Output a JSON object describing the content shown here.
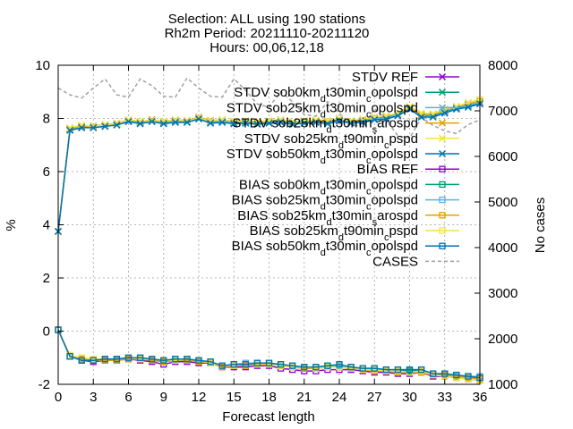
{
  "chart_data": {
    "type": "line",
    "title_lines": [
      "Selection: ALL using    190 stations",
      "Rh2m   Period: 20211110-20211120",
      "Hours: 00,06,12,18"
    ],
    "xlabel": "Forecast length",
    "ylabel": "%",
    "y2label": "No cases",
    "xlim": [
      0,
      36
    ],
    "ylim": [
      -2,
      10
    ],
    "y2lim": [
      1000,
      8000
    ],
    "xticks": [
      "0",
      "3",
      "6",
      "9",
      "12",
      "15",
      "18",
      "21",
      "24",
      "27",
      "30",
      "33",
      "36"
    ],
    "yticks": [
      "-2",
      "0",
      "2",
      "4",
      "6",
      "8",
      "10"
    ],
    "y2ticks": [
      "1000",
      "2000",
      "3000",
      "4000",
      "5000",
      "6000",
      "7000",
      "8000"
    ],
    "grid": true,
    "legend_position": "top-right",
    "x": [
      0,
      1,
      2,
      3,
      4,
      5,
      6,
      7,
      8,
      9,
      10,
      11,
      12,
      13,
      14,
      15,
      16,
      17,
      18,
      19,
      20,
      21,
      22,
      23,
      24,
      25,
      26,
      27,
      28,
      29,
      30,
      31,
      32,
      33,
      34,
      35,
      36
    ],
    "series": [
      {
        "name": "STDV REF",
        "color": "#9400d3",
        "marker": "x",
        "axis": "y",
        "values": [
          3.75,
          7.6,
          7.68,
          7.68,
          7.72,
          7.78,
          7.92,
          7.85,
          7.95,
          7.85,
          7.92,
          7.88,
          8.02,
          7.88,
          7.9,
          7.85,
          7.88,
          7.8,
          7.88,
          7.95,
          7.8,
          7.88,
          7.9,
          7.85,
          7.95,
          7.85,
          7.9,
          8.0,
          8.05,
          8.15,
          8.4,
          8.12,
          8.1,
          8.3,
          8.4,
          8.5,
          8.55
        ]
      },
      {
        "name": "STDV sob0km_d t30min_c opolspd",
        "color": "#009e73",
        "marker": "x",
        "axis": "y",
        "values": [
          3.75,
          7.58,
          7.65,
          7.68,
          7.72,
          7.78,
          7.9,
          7.82,
          7.9,
          7.82,
          7.88,
          7.88,
          8.0,
          7.85,
          7.88,
          7.82,
          7.85,
          7.8,
          7.85,
          7.88,
          7.8,
          7.85,
          7.88,
          7.82,
          7.92,
          7.85,
          7.88,
          7.98,
          8.0,
          8.15,
          8.38,
          8.1,
          8.1,
          8.25,
          8.4,
          8.48,
          8.6
        ]
      },
      {
        "name": "STDV sob25km_d t30min_c opolspd",
        "color": "#56b4e9",
        "marker": "x",
        "axis": "y",
        "values": [
          3.75,
          7.6,
          7.66,
          7.68,
          7.73,
          7.8,
          7.92,
          7.85,
          7.92,
          7.85,
          7.9,
          7.9,
          8.02,
          7.88,
          7.9,
          7.85,
          7.88,
          7.82,
          7.88,
          7.9,
          7.82,
          7.88,
          7.9,
          7.85,
          7.95,
          7.88,
          7.9,
          8.0,
          8.02,
          8.15,
          8.4,
          8.12,
          8.12,
          8.28,
          8.42,
          8.5,
          8.6
        ]
      },
      {
        "name": "STDV sob25km_d t30min_s arospd",
        "color": "#e69f00",
        "marker": "x",
        "axis": "y",
        "values": [
          3.75,
          7.62,
          7.7,
          7.72,
          7.76,
          7.82,
          7.95,
          7.88,
          7.95,
          7.88,
          7.95,
          7.92,
          8.05,
          7.92,
          7.95,
          7.88,
          7.9,
          7.85,
          7.9,
          7.95,
          7.85,
          7.9,
          7.92,
          7.88,
          8.0,
          7.9,
          7.95,
          8.05,
          8.08,
          8.2,
          8.42,
          8.15,
          8.15,
          8.32,
          8.45,
          8.55,
          8.65
        ]
      },
      {
        "name": "STDV sob25km_d t90min_c pspd",
        "color": "#f0e442",
        "marker": "x",
        "axis": "y",
        "values": [
          3.75,
          7.65,
          7.75,
          7.7,
          7.75,
          7.8,
          7.95,
          7.9,
          7.92,
          7.9,
          7.95,
          7.9,
          8.02,
          7.9,
          7.95,
          7.9,
          7.92,
          7.88,
          7.92,
          7.95,
          7.88,
          7.92,
          7.95,
          7.92,
          8.0,
          7.92,
          7.98,
          8.05,
          8.1,
          8.2,
          8.45,
          8.2,
          8.18,
          8.35,
          8.45,
          8.6,
          8.72
        ]
      },
      {
        "name": "STDV sob50km_d t30min_c opolspd",
        "color": "#0072b2",
        "marker": "x",
        "axis": "y",
        "values": [
          3.75,
          7.55,
          7.65,
          7.65,
          7.7,
          7.75,
          7.88,
          7.8,
          7.88,
          7.8,
          7.85,
          7.85,
          7.98,
          7.82,
          7.85,
          7.8,
          7.82,
          7.78,
          7.82,
          7.85,
          7.78,
          7.82,
          7.85,
          7.8,
          7.9,
          7.82,
          7.85,
          7.95,
          7.98,
          8.1,
          8.35,
          8.05,
          8.05,
          8.2,
          8.35,
          8.42,
          8.55
        ]
      },
      {
        "name": "BIAS REF",
        "color": "#9400d3",
        "marker": "square",
        "axis": "y",
        "values": [
          0.05,
          -0.95,
          -1.1,
          -1.15,
          -1.1,
          -1.1,
          -1.05,
          -1.1,
          -1.15,
          -1.25,
          -1.15,
          -1.15,
          -1.2,
          -1.2,
          -1.35,
          -1.35,
          -1.35,
          -1.3,
          -1.3,
          -1.4,
          -1.45,
          -1.5,
          -1.5,
          -1.45,
          -1.45,
          -1.45,
          -1.5,
          -1.55,
          -1.55,
          -1.6,
          -1.6,
          -1.55,
          -1.7,
          -1.7,
          -1.75,
          -1.8,
          -1.85
        ]
      },
      {
        "name": "BIAS sob0km_d t30min_c opolspd",
        "color": "#009e73",
        "marker": "square",
        "axis": "y",
        "values": [
          0.05,
          -0.95,
          -1.08,
          -1.1,
          -1.05,
          -1.05,
          -1.0,
          -1.05,
          -1.1,
          -1.15,
          -1.1,
          -1.05,
          -1.1,
          -1.2,
          -1.3,
          -1.3,
          -1.25,
          -1.25,
          -1.25,
          -1.3,
          -1.35,
          -1.4,
          -1.4,
          -1.35,
          -1.35,
          -1.4,
          -1.45,
          -1.45,
          -1.45,
          -1.5,
          -1.5,
          -1.5,
          -1.65,
          -1.65,
          -1.7,
          -1.75,
          -1.75
        ]
      },
      {
        "name": "BIAS sob25km_d t30min_c opolspd",
        "color": "#56b4e9",
        "marker": "square",
        "axis": "y",
        "values": [
          0.05,
          -0.95,
          -1.05,
          -1.1,
          -1.05,
          -1.05,
          -1.0,
          -1.0,
          -1.05,
          -1.1,
          -1.05,
          -1.05,
          -1.1,
          -1.15,
          -1.3,
          -1.25,
          -1.2,
          -1.2,
          -1.2,
          -1.25,
          -1.3,
          -1.35,
          -1.35,
          -1.3,
          -1.3,
          -1.35,
          -1.4,
          -1.4,
          -1.45,
          -1.45,
          -1.45,
          -1.45,
          -1.6,
          -1.6,
          -1.65,
          -1.7,
          -1.7
        ]
      },
      {
        "name": "BIAS sob25km_d t30min_s arospd",
        "color": "#e69f00",
        "marker": "square",
        "axis": "y",
        "values": [
          0.05,
          -0.95,
          -1.05,
          -1.1,
          -1.1,
          -1.1,
          -1.05,
          -1.05,
          -1.1,
          -1.15,
          -1.1,
          -1.1,
          -1.15,
          -1.2,
          -1.35,
          -1.3,
          -1.3,
          -1.25,
          -1.25,
          -1.3,
          -1.35,
          -1.4,
          -1.4,
          -1.35,
          -1.35,
          -1.4,
          -1.45,
          -1.5,
          -1.5,
          -1.55,
          -1.55,
          -1.55,
          -1.65,
          -1.65,
          -1.7,
          -1.75,
          -1.8
        ]
      },
      {
        "name": "BIAS sob25km_d t90min_c pspd",
        "color": "#f0e442",
        "marker": "square",
        "axis": "y",
        "values": [
          0.05,
          -0.9,
          -1.0,
          -1.05,
          -1.05,
          -1.05,
          -1.0,
          -1.05,
          -1.05,
          -1.1,
          -1.1,
          -1.05,
          -1.1,
          -1.2,
          -1.3,
          -1.3,
          -1.25,
          -1.25,
          -1.25,
          -1.3,
          -1.35,
          -1.35,
          -1.4,
          -1.35,
          -1.35,
          -1.4,
          -1.45,
          -1.45,
          -1.5,
          -1.5,
          -1.55,
          -1.5,
          -1.65,
          -1.7,
          -1.75,
          -1.8,
          -1.85
        ]
      },
      {
        "name": "BIAS sob50km_d t30min_c opolspd",
        "color": "#0072b2",
        "marker": "square",
        "axis": "y",
        "values": [
          0.05,
          -0.95,
          -1.1,
          -1.1,
          -1.05,
          -1.05,
          -1.0,
          -1.0,
          -1.05,
          -1.1,
          -1.05,
          -1.05,
          -1.1,
          -1.15,
          -1.3,
          -1.25,
          -1.25,
          -1.2,
          -1.2,
          -1.25,
          -1.3,
          -1.35,
          -1.35,
          -1.3,
          -1.25,
          -1.35,
          -1.4,
          -1.4,
          -1.45,
          -1.45,
          -1.45,
          -1.45,
          -1.6,
          -1.6,
          -1.65,
          -1.7,
          -1.75
        ]
      },
      {
        "name": "CASES",
        "color": "#a0a0a0",
        "marker": "none",
        "dashed": true,
        "axis": "y2",
        "values": [
          7500,
          7350,
          7280,
          7500,
          7700,
          7350,
          7300,
          7700,
          7550,
          7320,
          7300,
          7720,
          7500,
          7320,
          7300,
          7700,
          7450,
          7150,
          7080,
          7420,
          7200,
          6920,
          6880,
          7200,
          6950,
          6700,
          6650,
          7050,
          6800,
          6450,
          6400,
          6850,
          6680,
          6560,
          6500,
          6700,
          6800
        ]
      }
    ]
  }
}
